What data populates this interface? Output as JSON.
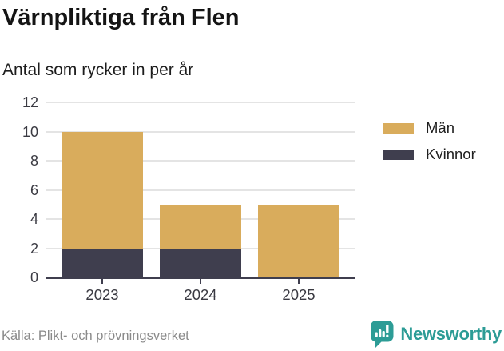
{
  "header": {
    "title": "Värnpliktiga från Flen",
    "subtitle": "Antal som rycker in per år"
  },
  "chart_data": {
    "type": "bar",
    "stacked": true,
    "title": "Värnpliktiga från Flen",
    "subtitle": "Antal som rycker in per år",
    "categories": [
      "2023",
      "2024",
      "2025"
    ],
    "series": [
      {
        "name": "Män",
        "color": "#d9ac5c",
        "values": [
          8,
          3,
          5
        ]
      },
      {
        "name": "Kvinnor",
        "color": "#3f3e4e",
        "values": [
          2,
          2,
          0
        ]
      }
    ],
    "totals": [
      10,
      5,
      5
    ],
    "ylim": [
      0,
      12
    ],
    "yticks": [
      0,
      2,
      4,
      6,
      8,
      10,
      12
    ],
    "xlabel": "",
    "ylabel": "",
    "grid": "horizontal",
    "legend_position": "right"
  },
  "footer": {
    "source": "Källa: Plikt- och prövningsverket"
  },
  "brand": {
    "name": "Newsworthy",
    "color": "#2d9c96"
  },
  "colors": {
    "men": "#d9ac5c",
    "women": "#3f3e4e",
    "gridline": "#e4e4e4",
    "axis": "#3f3e4e",
    "tick_text": "#3a3a42",
    "muted_text": "#8a8a8a",
    "brand_teal": "#2d9c96"
  }
}
